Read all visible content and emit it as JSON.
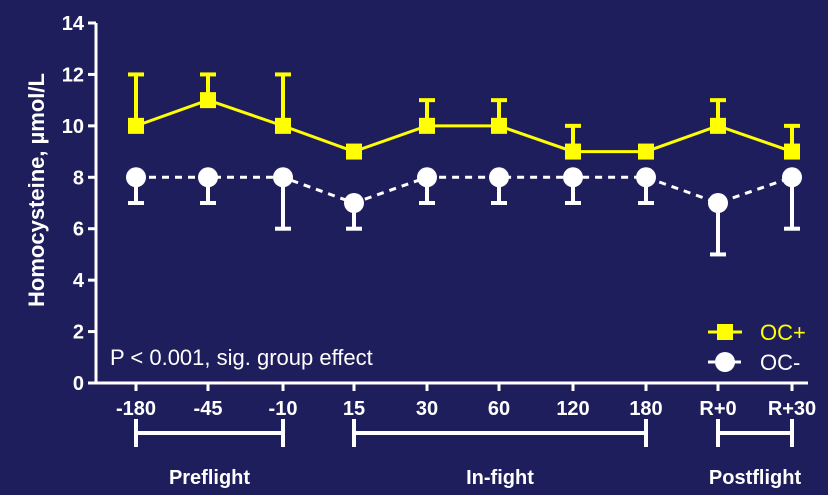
{
  "chart_data": {
    "type": "line",
    "ylabel": "Homocysteine, µmol/L",
    "ylim": [
      0,
      14
    ],
    "yticks": [
      0,
      2,
      4,
      6,
      8,
      10,
      12,
      14
    ],
    "categories": [
      "-180",
      "-45",
      "-10",
      "15",
      "30",
      "60",
      "120",
      "180",
      "R+0",
      "R+30"
    ],
    "series": [
      {
        "name": "OC+",
        "color": "#ffff00",
        "line_style": "solid",
        "marker": "square",
        "values": [
          10,
          11,
          10,
          9,
          10,
          10,
          9,
          9,
          10,
          9
        ],
        "error_upper": [
          12,
          12,
          12,
          9,
          11,
          11,
          10,
          9,
          11,
          10
        ],
        "error_direction": "up"
      },
      {
        "name": "OC-",
        "color": "#ffffff",
        "line_style": "dashed",
        "marker": "circle",
        "values": [
          8,
          8,
          8,
          7,
          8,
          8,
          8,
          8,
          7,
          8
        ],
        "error_lower": [
          7,
          7,
          6,
          6,
          7,
          7,
          7,
          7,
          5,
          6
        ],
        "error_direction": "down"
      }
    ],
    "annotation": "P < 0.001, sig. group effect",
    "groups": [
      {
        "label": "Preflight",
        "from": 0,
        "to": 2
      },
      {
        "label": "In-fight",
        "from": 3,
        "to": 7
      },
      {
        "label": "Postflight",
        "from": 8,
        "to": 9
      }
    ],
    "legend": {
      "position": "bottom-right",
      "entries": [
        "OC+",
        "OC-"
      ]
    },
    "background": "#1f1e5c",
    "grid": false
  }
}
